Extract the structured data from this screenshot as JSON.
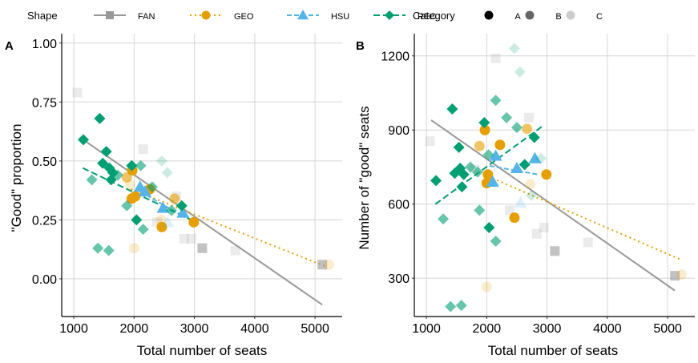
{
  "legend": {
    "shape_title": "Shape",
    "shapes": [
      {
        "label": "FAN",
        "color": "#999999",
        "marker": "square",
        "linetype": "solid"
      },
      {
        "label": "GEO",
        "color": "#E69F00",
        "marker": "circle",
        "linetype": "dotted"
      },
      {
        "label": "HSU",
        "color": "#56B4E9",
        "marker": "triangle",
        "linetype": "dashed"
      },
      {
        "label": "REC",
        "color": "#009E73",
        "marker": "diamond",
        "linetype": "longdash"
      }
    ],
    "category_title": "Category",
    "categories": [
      {
        "label": "A",
        "alpha": 1.0
      },
      {
        "label": "B",
        "alpha": 0.6
      },
      {
        "label": "C",
        "alpha": 0.2
      }
    ]
  },
  "chart_data": [
    {
      "panel": "A",
      "type": "scatter",
      "title": "",
      "xlabel": "Total number of seats",
      "ylabel": "\"Good\" proportion",
      "xlim": [
        800,
        5450
      ],
      "ylim": [
        -0.16,
        1.04
      ],
      "xticks": [
        1000,
        2000,
        3000,
        4000,
        5000
      ],
      "xtick_labels": [
        "1000",
        "2000",
        "3000",
        "4000",
        "5000"
      ],
      "yticks": [
        0,
        0.25,
        0.5,
        0.75,
        1.0
      ],
      "ytick_labels": [
        "0.00",
        "0.25",
        "0.50",
        "0.75",
        "1.00"
      ],
      "grid": true,
      "points": [
        {
          "group": "FAN",
          "cat": "C",
          "x": 1060,
          "y": 0.79
        },
        {
          "group": "FAN",
          "cat": "C",
          "x": 2150,
          "y": 0.55
        },
        {
          "group": "FAN",
          "cat": "C",
          "x": 2380,
          "y": 0.24
        },
        {
          "group": "FAN",
          "cat": "C",
          "x": 2700,
          "y": 0.35
        },
        {
          "group": "FAN",
          "cat": "C",
          "x": 2830,
          "y": 0.17
        },
        {
          "group": "FAN",
          "cat": "C",
          "x": 2950,
          "y": 0.17
        },
        {
          "group": "FAN",
          "cat": "B",
          "x": 3130,
          "y": 0.13
        },
        {
          "group": "FAN",
          "cat": "C",
          "x": 3680,
          "y": 0.12
        },
        {
          "group": "FAN",
          "cat": "B",
          "x": 5120,
          "y": 0.06
        },
        {
          "group": "GEO",
          "cat": "A",
          "x": 1970,
          "y": 0.46
        },
        {
          "group": "GEO",
          "cat": "B",
          "x": 1880,
          "y": 0.43
        },
        {
          "group": "GEO",
          "cat": "C",
          "x": 1930,
          "y": 0.4
        },
        {
          "group": "GEO",
          "cat": "A",
          "x": 2020,
          "y": 0.35
        },
        {
          "group": "GEO",
          "cat": "A",
          "x": 1960,
          "y": 0.34
        },
        {
          "group": "GEO",
          "cat": "A",
          "x": 2260,
          "y": 0.38
        },
        {
          "group": "GEO",
          "cat": "A",
          "x": 2460,
          "y": 0.22
        },
        {
          "group": "GEO",
          "cat": "B",
          "x": 2670,
          "y": 0.34
        },
        {
          "group": "GEO",
          "cat": "A",
          "x": 2990,
          "y": 0.24
        },
        {
          "group": "GEO",
          "cat": "C",
          "x": 2000,
          "y": 0.13
        },
        {
          "group": "GEO",
          "cat": "C",
          "x": 2450,
          "y": 0.25
        },
        {
          "group": "GEO",
          "cat": "C",
          "x": 5230,
          "y": 0.06
        },
        {
          "group": "HSU",
          "cat": "A",
          "x": 2100,
          "y": 0.39
        },
        {
          "group": "HSU",
          "cat": "A",
          "x": 2180,
          "y": 0.37
        },
        {
          "group": "HSU",
          "cat": "A",
          "x": 2480,
          "y": 0.3
        },
        {
          "group": "HSU",
          "cat": "A",
          "x": 2810,
          "y": 0.28
        },
        {
          "group": "HSU",
          "cat": "C",
          "x": 2560,
          "y": 0.24
        },
        {
          "group": "REC",
          "cat": "A",
          "x": 1160,
          "y": 0.59
        },
        {
          "group": "REC",
          "cat": "A",
          "x": 1430,
          "y": 0.68
        },
        {
          "group": "REC",
          "cat": "A",
          "x": 1540,
          "y": 0.54
        },
        {
          "group": "REC",
          "cat": "A",
          "x": 1480,
          "y": 0.49
        },
        {
          "group": "REC",
          "cat": "A",
          "x": 1590,
          "y": 0.47
        },
        {
          "group": "REC",
          "cat": "A",
          "x": 1650,
          "y": 0.45
        },
        {
          "group": "REC",
          "cat": "A",
          "x": 1620,
          "y": 0.42
        },
        {
          "group": "REC",
          "cat": "A",
          "x": 1960,
          "y": 0.48
        },
        {
          "group": "REC",
          "cat": "A",
          "x": 2040,
          "y": 0.25
        },
        {
          "group": "REC",
          "cat": "A",
          "x": 2790,
          "y": 0.31
        },
        {
          "group": "REC",
          "cat": "B",
          "x": 1300,
          "y": 0.42
        },
        {
          "group": "REC",
          "cat": "B",
          "x": 1730,
          "y": 0.44
        },
        {
          "group": "REC",
          "cat": "B",
          "x": 2110,
          "y": 0.48
        },
        {
          "group": "REC",
          "cat": "B",
          "x": 1880,
          "y": 0.31
        },
        {
          "group": "REC",
          "cat": "B",
          "x": 2300,
          "y": 0.39
        },
        {
          "group": "REC",
          "cat": "B",
          "x": 2150,
          "y": 0.21
        },
        {
          "group": "REC",
          "cat": "B",
          "x": 1400,
          "y": 0.13
        },
        {
          "group": "REC",
          "cat": "B",
          "x": 1580,
          "y": 0.12
        },
        {
          "group": "REC",
          "cat": "B",
          "x": 2620,
          "y": 0.29
        },
        {
          "group": "REC",
          "cat": "C",
          "x": 2460,
          "y": 0.5
        },
        {
          "group": "REC",
          "cat": "C",
          "x": 2550,
          "y": 0.45
        }
      ],
      "trend_lines": [
        {
          "group": "FAN",
          "x": [
            1100,
            5120
          ],
          "y": [
            0.6,
            -0.11
          ]
        },
        {
          "group": "GEO",
          "x": [
            1950,
            5200
          ],
          "y": [
            0.38,
            0.05
          ]
        },
        {
          "group": "HSU",
          "x": [
            2100,
            2850
          ],
          "y": [
            0.37,
            0.26
          ]
        },
        {
          "group": "REC",
          "x": [
            1150,
            2950
          ],
          "y": [
            0.47,
            0.25
          ]
        }
      ]
    },
    {
      "panel": "B",
      "type": "scatter",
      "title": "",
      "xlabel": "Total number of seats",
      "ylabel": "Number of \"good\" seats",
      "xlim": [
        800,
        5450
      ],
      "ylim": [
        145,
        1290
      ],
      "xticks": [
        1000,
        2000,
        3000,
        4000,
        5000
      ],
      "xtick_labels": [
        "1000",
        "2000",
        "3000",
        "4000",
        "5000"
      ],
      "yticks": [
        300,
        600,
        900,
        1200
      ],
      "ytick_labels": [
        "300",
        "600",
        "900",
        "1200"
      ],
      "grid": true,
      "points": [
        {
          "group": "FAN",
          "cat": "C",
          "x": 1060,
          "y": 855
        },
        {
          "group": "FAN",
          "cat": "C",
          "x": 2150,
          "y": 1190
        },
        {
          "group": "FAN",
          "cat": "C",
          "x": 2700,
          "y": 950
        },
        {
          "group": "FAN",
          "cat": "C",
          "x": 1800,
          "y": 740
        },
        {
          "group": "FAN",
          "cat": "C",
          "x": 2380,
          "y": 575
        },
        {
          "group": "FAN",
          "cat": "C",
          "x": 2830,
          "y": 480
        },
        {
          "group": "FAN",
          "cat": "C",
          "x": 2950,
          "y": 505
        },
        {
          "group": "FAN",
          "cat": "B",
          "x": 3130,
          "y": 410
        },
        {
          "group": "FAN",
          "cat": "C",
          "x": 3680,
          "y": 445
        },
        {
          "group": "FAN",
          "cat": "B",
          "x": 5120,
          "y": 310
        },
        {
          "group": "GEO",
          "cat": "A",
          "x": 1970,
          "y": 900
        },
        {
          "group": "GEO",
          "cat": "A",
          "x": 2220,
          "y": 840
        },
        {
          "group": "GEO",
          "cat": "B",
          "x": 1880,
          "y": 835
        },
        {
          "group": "GEO",
          "cat": "A",
          "x": 2020,
          "y": 720
        },
        {
          "group": "GEO",
          "cat": "A",
          "x": 2000,
          "y": 685
        },
        {
          "group": "GEO",
          "cat": "A",
          "x": 2460,
          "y": 545
        },
        {
          "group": "GEO",
          "cat": "B",
          "x": 2670,
          "y": 905
        },
        {
          "group": "GEO",
          "cat": "A",
          "x": 2990,
          "y": 720
        },
        {
          "group": "GEO",
          "cat": "C",
          "x": 2000,
          "y": 265
        },
        {
          "group": "GEO",
          "cat": "C",
          "x": 2720,
          "y": 680
        },
        {
          "group": "GEO",
          "cat": "C",
          "x": 5230,
          "y": 315
        },
        {
          "group": "HSU",
          "cat": "A",
          "x": 2150,
          "y": 795
        },
        {
          "group": "HSU",
          "cat": "A",
          "x": 2500,
          "y": 745
        },
        {
          "group": "HSU",
          "cat": "A",
          "x": 2800,
          "y": 785
        },
        {
          "group": "HSU",
          "cat": "A",
          "x": 2100,
          "y": 690
        },
        {
          "group": "HSU",
          "cat": "C",
          "x": 2560,
          "y": 605
        },
        {
          "group": "REC",
          "cat": "A",
          "x": 1160,
          "y": 695
        },
        {
          "group": "REC",
          "cat": "A",
          "x": 1430,
          "y": 985
        },
        {
          "group": "REC",
          "cat": "A",
          "x": 1540,
          "y": 830
        },
        {
          "group": "REC",
          "cat": "A",
          "x": 1470,
          "y": 725
        },
        {
          "group": "REC",
          "cat": "A",
          "x": 1560,
          "y": 745
        },
        {
          "group": "REC",
          "cat": "A",
          "x": 1620,
          "y": 720
        },
        {
          "group": "REC",
          "cat": "A",
          "x": 1590,
          "y": 670
        },
        {
          "group": "REC",
          "cat": "A",
          "x": 1960,
          "y": 930
        },
        {
          "group": "REC",
          "cat": "A",
          "x": 2040,
          "y": 505
        },
        {
          "group": "REC",
          "cat": "A",
          "x": 2790,
          "y": 870
        },
        {
          "group": "REC",
          "cat": "A",
          "x": 2630,
          "y": 760
        },
        {
          "group": "REC",
          "cat": "B",
          "x": 1280,
          "y": 540
        },
        {
          "group": "REC",
          "cat": "B",
          "x": 1730,
          "y": 750
        },
        {
          "group": "REC",
          "cat": "B",
          "x": 2150,
          "y": 1020
        },
        {
          "group": "REC",
          "cat": "B",
          "x": 1880,
          "y": 575
        },
        {
          "group": "REC",
          "cat": "B",
          "x": 2330,
          "y": 950
        },
        {
          "group": "REC",
          "cat": "B",
          "x": 2150,
          "y": 450
        },
        {
          "group": "REC",
          "cat": "B",
          "x": 1400,
          "y": 185
        },
        {
          "group": "REC",
          "cat": "B",
          "x": 1580,
          "y": 190
        },
        {
          "group": "REC",
          "cat": "B",
          "x": 2500,
          "y": 910
        },
        {
          "group": "REC",
          "cat": "B",
          "x": 1850,
          "y": 730
        },
        {
          "group": "REC",
          "cat": "B",
          "x": 2030,
          "y": 800
        },
        {
          "group": "REC",
          "cat": "C",
          "x": 2460,
          "y": 1230
        },
        {
          "group": "REC",
          "cat": "C",
          "x": 2550,
          "y": 1135
        },
        {
          "group": "REC",
          "cat": "C",
          "x": 2740,
          "y": 635
        },
        {
          "group": "REC",
          "cat": "C",
          "x": 2900,
          "y": 785
        }
      ],
      "trend_lines": [
        {
          "group": "FAN",
          "x": [
            1080,
            5120
          ],
          "y": [
            940,
            250
          ]
        },
        {
          "group": "GEO",
          "x": [
            1950,
            5220
          ],
          "y": [
            720,
            375
          ]
        },
        {
          "group": "HSU",
          "x": [
            2050,
            2850
          ],
          "y": [
            755,
            720
          ]
        },
        {
          "group": "REC",
          "x": [
            1150,
            2950
          ],
          "y": [
            600,
            920
          ]
        }
      ]
    }
  ]
}
